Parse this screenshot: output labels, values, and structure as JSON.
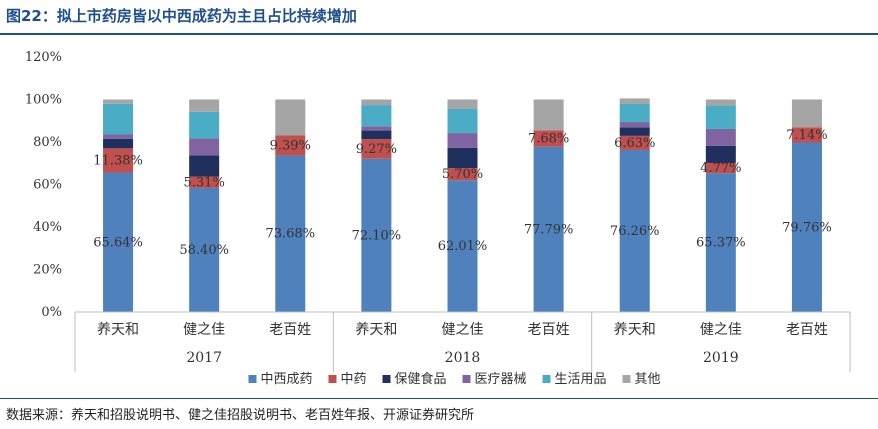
{
  "title": "图22：拟上市药房皆以中西成药为主且占比持续增加",
  "source": "数据来源：养天和招股说明书、健之佳招股说明书、老百姓年报、开源证券研究所",
  "chart_data": {
    "type": "bar",
    "stacked": true,
    "groups": [
      {
        "year": "2017",
        "companies": [
          "养天和",
          "健之佳",
          "老百姓"
        ]
      },
      {
        "year": "2018",
        "companies": [
          "养天和",
          "健之佳",
          "老百姓"
        ]
      },
      {
        "year": "2019",
        "companies": [
          "养天和",
          "健之佳",
          "老百姓"
        ]
      }
    ],
    "ylim": [
      0,
      120
    ],
    "yticks": [
      "0%",
      "20%",
      "40%",
      "60%",
      "80%",
      "100%",
      "120%"
    ],
    "ytick_values": [
      0,
      20,
      40,
      60,
      80,
      100,
      120
    ],
    "legend_position": "bottom",
    "series": [
      {
        "name": "中西成药",
        "color": "#4f81bd",
        "values": [
          65.64,
          58.4,
          73.68,
          72.1,
          62.01,
          77.79,
          76.26,
          65.37,
          79.76
        ],
        "labels": [
          "65.64%",
          "58.40%",
          "73.68%",
          "72.10%",
          "62.01%",
          "77.79%",
          "76.26%",
          "65.37%",
          "79.76%"
        ]
      },
      {
        "name": "中药",
        "color": "#c0504d",
        "values": [
          11.38,
          5.31,
          9.39,
          9.27,
          5.7,
          7.68,
          6.63,
          4.77,
          7.14
        ],
        "labels": [
          "11.38%",
          "5.31%",
          "9.39%",
          "9.27%",
          "5.70%",
          "7.68%",
          "6.63%",
          "4.77%",
          "7.14%"
        ]
      },
      {
        "name": "保健食品",
        "color": "#1f2f5e",
        "values": [
          4.5,
          10.0,
          0,
          4.0,
          9.5,
          0,
          4.0,
          8.0,
          0
        ]
      },
      {
        "name": "医疗器械",
        "color": "#8064a2",
        "values": [
          2.0,
          8.0,
          0,
          2.0,
          7.0,
          0,
          2.5,
          8.0,
          0
        ]
      },
      {
        "name": "生活用品",
        "color": "#4bacc6",
        "values": [
          14.5,
          12.5,
          0,
          10.0,
          11.5,
          0,
          8.5,
          11.0,
          0
        ]
      },
      {
        "name": "其他",
        "color": "#a5a5a5",
        "values": [
          1.98,
          5.79,
          16.93,
          2.63,
          4.29,
          14.53,
          2.61,
          2.86,
          13.1
        ]
      }
    ]
  }
}
